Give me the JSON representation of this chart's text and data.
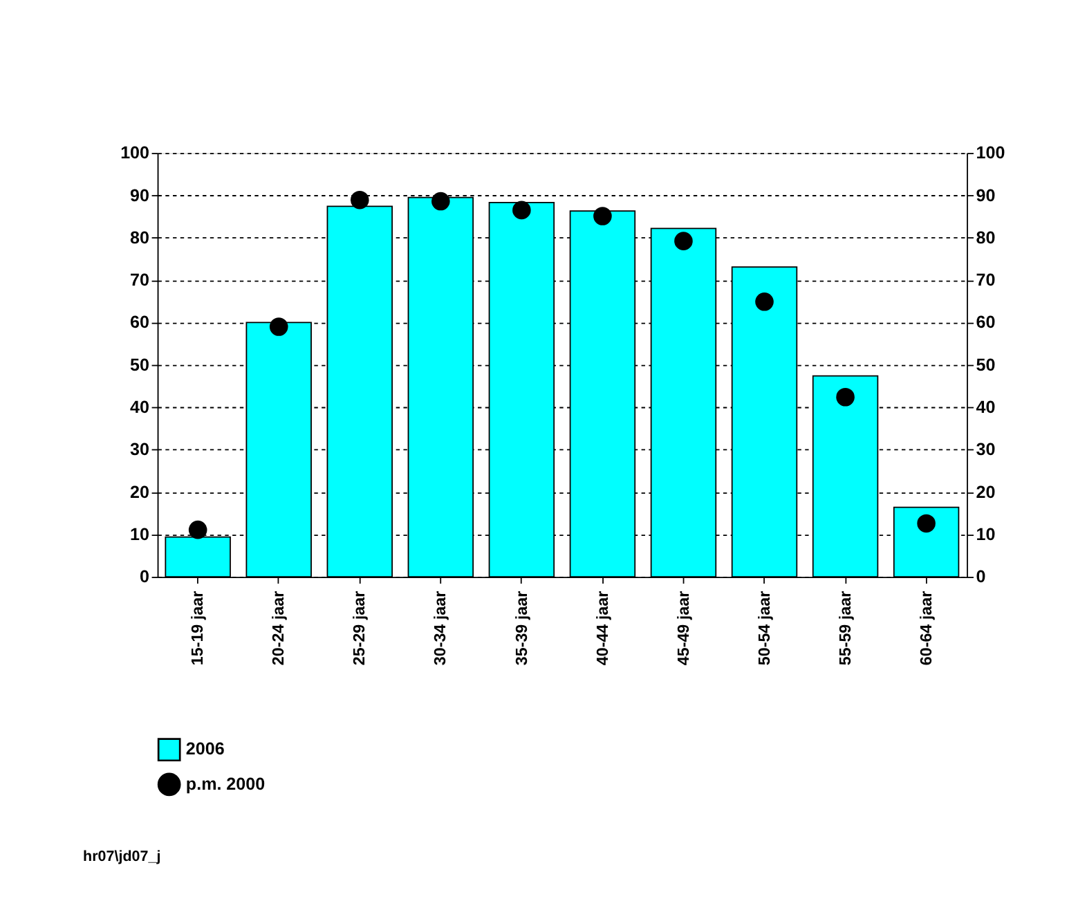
{
  "chart_data": {
    "type": "bar",
    "categories": [
      "15-19 jaar",
      "20-24 jaar",
      "25-29 jaar",
      "30-34 jaar",
      "35-39 jaar",
      "40-44 jaar",
      "45-49 jaar",
      "50-54 jaar",
      "55-59 jaar",
      "60-64 jaar"
    ],
    "series": [
      {
        "name": "2006",
        "color": "#00ffff",
        "values": [
          9.4,
          60,
          87.4,
          89.5,
          88.3,
          86.3,
          82.2,
          73.1,
          47.4,
          16.4
        ]
      },
      {
        "name": "p.m. 2000",
        "type": "scatter",
        "color": "#000000",
        "values": [
          11.1,
          59,
          88.9,
          88.6,
          86.5,
          85.1,
          79.2,
          64.9,
          42.4,
          12.6
        ]
      }
    ],
    "ylim": [
      0,
      100
    ],
    "yticks": [
      0,
      10,
      20,
      30,
      40,
      50,
      60,
      70,
      80,
      90,
      100
    ],
    "y2lim": [
      0,
      100
    ],
    "y2ticks": [
      0,
      10,
      20,
      30,
      40,
      50,
      60,
      70,
      80,
      90,
      100
    ],
    "grid": "y",
    "legend": "bottom left",
    "marker": "circle",
    "annotations": [
      "hr07\\jd07_j"
    ]
  }
}
